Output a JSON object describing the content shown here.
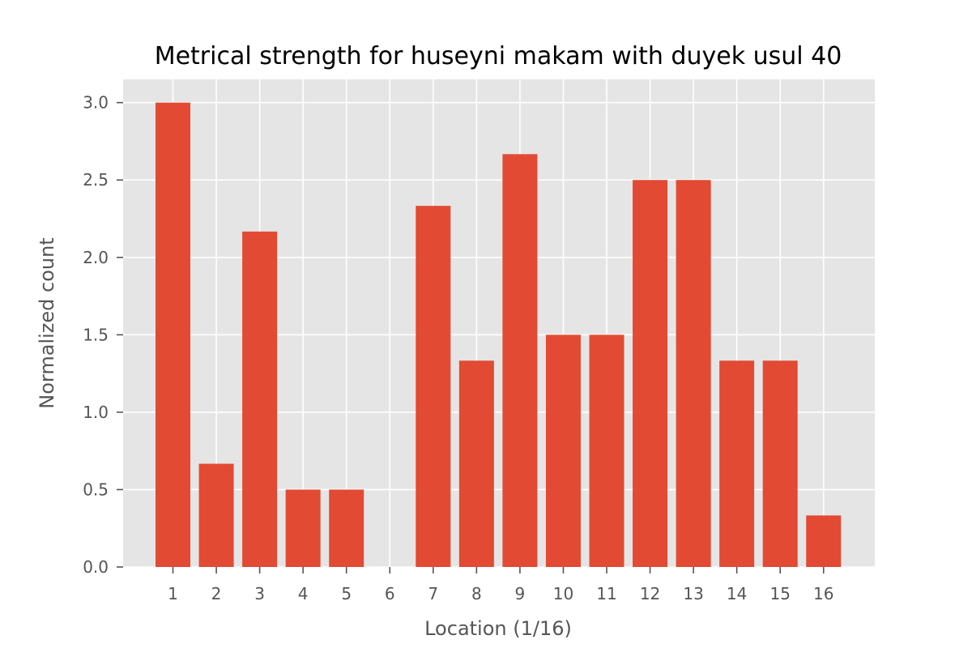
{
  "chart_data": {
    "type": "bar",
    "title": "Metrical strength for huseyni makam with duyek usul 40",
    "xlabel": "Location (1/16)",
    "ylabel": "Normalized count",
    "categories": [
      "1",
      "2",
      "3",
      "4",
      "5",
      "6",
      "7",
      "8",
      "9",
      "10",
      "11",
      "12",
      "13",
      "14",
      "15",
      "16"
    ],
    "values": [
      3.0,
      0.667,
      2.167,
      0.5,
      0.5,
      0.0,
      2.333,
      1.333,
      2.667,
      1.5,
      1.5,
      2.5,
      2.5,
      1.333,
      1.333,
      0.333
    ],
    "ylim": [
      0,
      3.15
    ],
    "yticks": [
      "0.0",
      "0.5",
      "1.0",
      "1.5",
      "2.0",
      "2.5",
      "3.0"
    ],
    "grid": true,
    "colors": {
      "bar": "#E24A33",
      "plot_bg": "#E5E5E5",
      "grid": "#FFFFFF"
    }
  }
}
